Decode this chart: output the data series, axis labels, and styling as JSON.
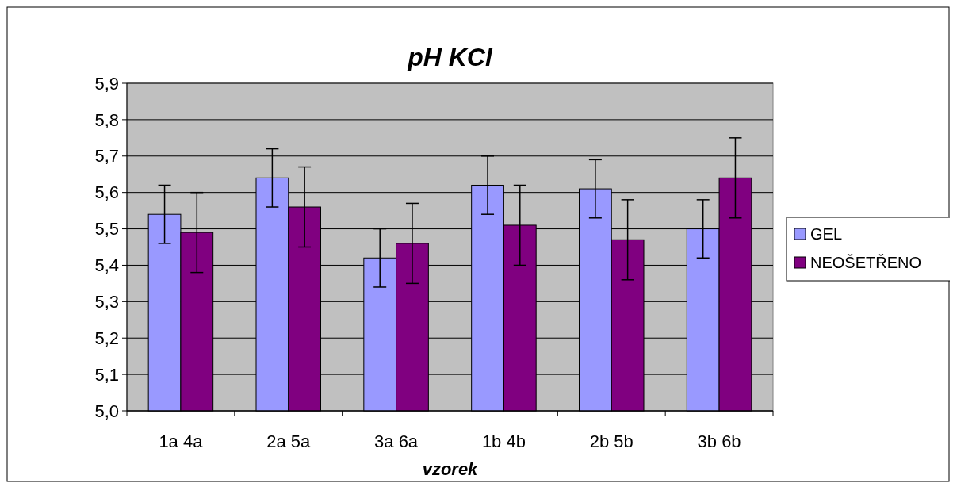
{
  "chart_data": {
    "type": "bar",
    "title": "pH KCl",
    "xlabel": "vzorek",
    "categories": [
      "1a 4a",
      "2a 5a",
      "3a 6a",
      "1b 4b",
      "2b 5b",
      "3b 6b"
    ],
    "series": [
      {
        "name": "GEL",
        "color": "#9999ff",
        "values": [
          5.54,
          5.64,
          5.42,
          5.62,
          5.61,
          5.5
        ],
        "errors": [
          0.08,
          0.08,
          0.08,
          0.08,
          0.08,
          0.08
        ]
      },
      {
        "name": "NEOŠETŘENO",
        "color": "#800080",
        "values": [
          5.49,
          5.56,
          5.46,
          5.51,
          5.47,
          5.64
        ],
        "errors": [
          0.11,
          0.11,
          0.11,
          0.11,
          0.11,
          0.11
        ]
      }
    ],
    "ylim": [
      5.0,
      5.9
    ],
    "yticks": [
      {
        "value": 5.0,
        "label": "5,0"
      },
      {
        "value": 5.1,
        "label": "5,1"
      },
      {
        "value": 5.2,
        "label": "5,2"
      },
      {
        "value": 5.3,
        "label": "5,3"
      },
      {
        "value": 5.4,
        "label": "5,4"
      },
      {
        "value": 5.5,
        "label": "5,5"
      },
      {
        "value": 5.6,
        "label": "5,6"
      },
      {
        "value": 5.7,
        "label": "5,7"
      },
      {
        "value": 5.8,
        "label": "5,8"
      },
      {
        "value": 5.9,
        "label": "5,9"
      }
    ],
    "grid": "y",
    "legend": "right"
  }
}
